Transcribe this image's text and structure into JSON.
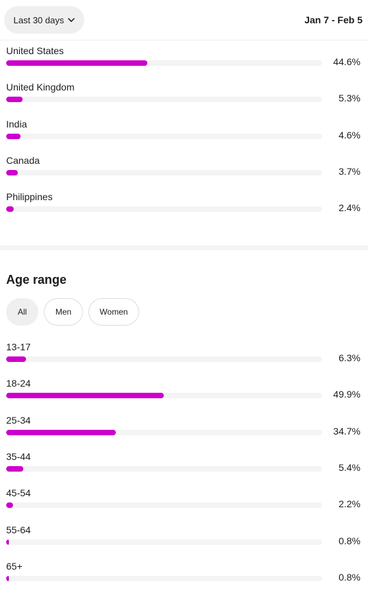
{
  "header": {
    "period_label": "Last 30 days",
    "date_range": "Jan 7 - Feb 5"
  },
  "countries": [
    {
      "label": "United States",
      "value": "44.6%",
      "share": 0.446
    },
    {
      "label": "United Kingdom",
      "value": "5.3%",
      "share": 0.053
    },
    {
      "label": "India",
      "value": "4.6%",
      "share": 0.046
    },
    {
      "label": "Canada",
      "value": "3.7%",
      "share": 0.037
    },
    {
      "label": "Philippines",
      "value": "2.4%",
      "share": 0.024
    }
  ],
  "age_section": {
    "title": "Age range",
    "filters": [
      "All",
      "Men",
      "Women"
    ],
    "selected_filter": "All",
    "ranges": [
      {
        "label": "13-17",
        "value": "6.3%",
        "share": 0.063
      },
      {
        "label": "18-24",
        "value": "49.9%",
        "share": 0.499
      },
      {
        "label": "25-34",
        "value": "34.7%",
        "share": 0.347
      },
      {
        "label": "35-44",
        "value": "5.4%",
        "share": 0.054
      },
      {
        "label": "45-54",
        "value": "2.2%",
        "share": 0.022
      },
      {
        "label": "55-64",
        "value": "0.8%",
        "share": 0.008
      },
      {
        "label": "65+",
        "value": "0.8%",
        "share": 0.008
      }
    ]
  },
  "colors": {
    "bar_fill": "#cc00cc",
    "bar_track": "#f4f4f4",
    "chip_selected": "#efefef"
  },
  "icons": {
    "period_dropdown": "chevron-down-icon"
  }
}
